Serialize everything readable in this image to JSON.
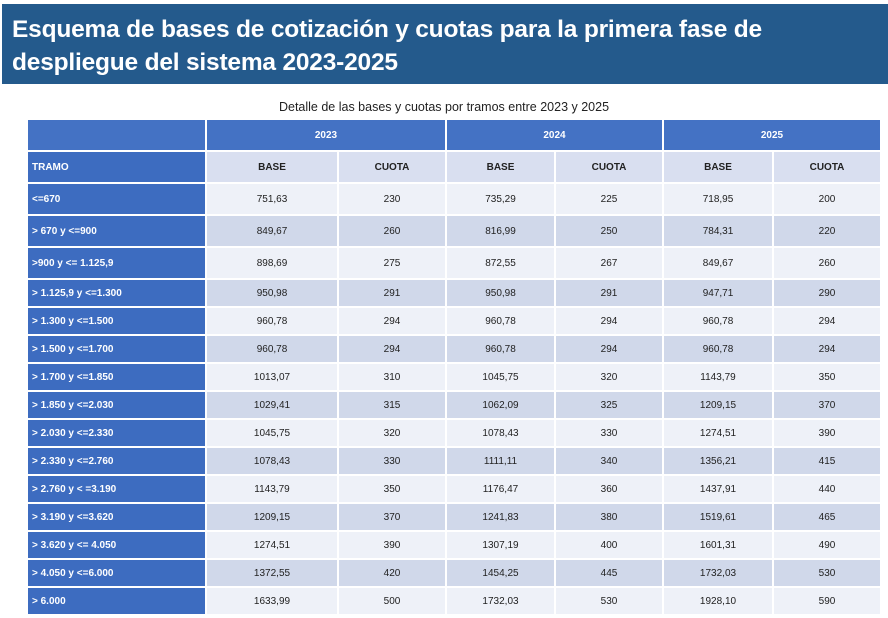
{
  "title": "Esquema de bases de cotización y cuotas para la primera fase de despliegue del sistema 2023-2025",
  "caption": "Detalle de las bases y cuotas por tramos entre 2023 y 2025",
  "table": {
    "years": [
      "2023",
      "2024",
      "2025"
    ],
    "tramo_header": "TRAMO",
    "base_header": "BASE",
    "cuota_header": "CUOTA",
    "rows": [
      {
        "tramo": "<=670",
        "values": [
          "751,63",
          "230",
          "735,29",
          "225",
          "718,95",
          "200"
        ]
      },
      {
        "tramo": "> 670 y <=900",
        "values": [
          "849,67",
          "260",
          "816,99",
          "250",
          "784,31",
          "220"
        ]
      },
      {
        "tramo": ">900 y <= 1.125,9",
        "values": [
          "898,69",
          "275",
          "872,55",
          "267",
          "849,67",
          "260"
        ]
      },
      {
        "tramo": "> 1.125,9 y <=1.300",
        "values": [
          "950,98",
          "291",
          "950,98",
          "291",
          "947,71",
          "290"
        ]
      },
      {
        "tramo": "> 1.300 y <=1.500",
        "values": [
          "960,78",
          "294",
          "960,78",
          "294",
          "960,78",
          "294"
        ]
      },
      {
        "tramo": "> 1.500 y <=1.700",
        "values": [
          "960,78",
          "294",
          "960,78",
          "294",
          "960,78",
          "294"
        ]
      },
      {
        "tramo": "> 1.700 y <=1.850",
        "values": [
          "1013,07",
          "310",
          "1045,75",
          "320",
          "1143,79",
          "350"
        ]
      },
      {
        "tramo": "> 1.850 y <=2.030",
        "values": [
          "1029,41",
          "315",
          "1062,09",
          "325",
          "1209,15",
          "370"
        ]
      },
      {
        "tramo": "> 2.030 y <=2.330",
        "values": [
          "1045,75",
          "320",
          "1078,43",
          "330",
          "1274,51",
          "390"
        ]
      },
      {
        "tramo": "> 2.330 y <=2.760",
        "values": [
          "1078,43",
          "330",
          "1111,11",
          "340",
          "1356,21",
          "415"
        ]
      },
      {
        "tramo": "> 2.760 y < =3.190",
        "values": [
          "1143,79",
          "350",
          "1176,47",
          "360",
          "1437,91",
          "440"
        ]
      },
      {
        "tramo": "> 3.190 y <=3.620",
        "values": [
          "1209,15",
          "370",
          "1241,83",
          "380",
          "1519,61",
          "465"
        ]
      },
      {
        "tramo": "> 3.620 y <= 4.050",
        "values": [
          "1274,51",
          "390",
          "1307,19",
          "400",
          "1601,31",
          "490"
        ]
      },
      {
        "tramo": "> 4.050 y <=6.000",
        "values": [
          "1372,55",
          "420",
          "1454,25",
          "445",
          "1732,03",
          "530"
        ]
      },
      {
        "tramo": "> 6.000",
        "values": [
          "1633,99",
          "500",
          "1732,03",
          "530",
          "1928,10",
          "590"
        ]
      }
    ]
  },
  "colors": {
    "banner": "#245a8c",
    "header": "#4472c4",
    "row_light": "#eef1f8",
    "row_dark": "#d0d8ea"
  }
}
